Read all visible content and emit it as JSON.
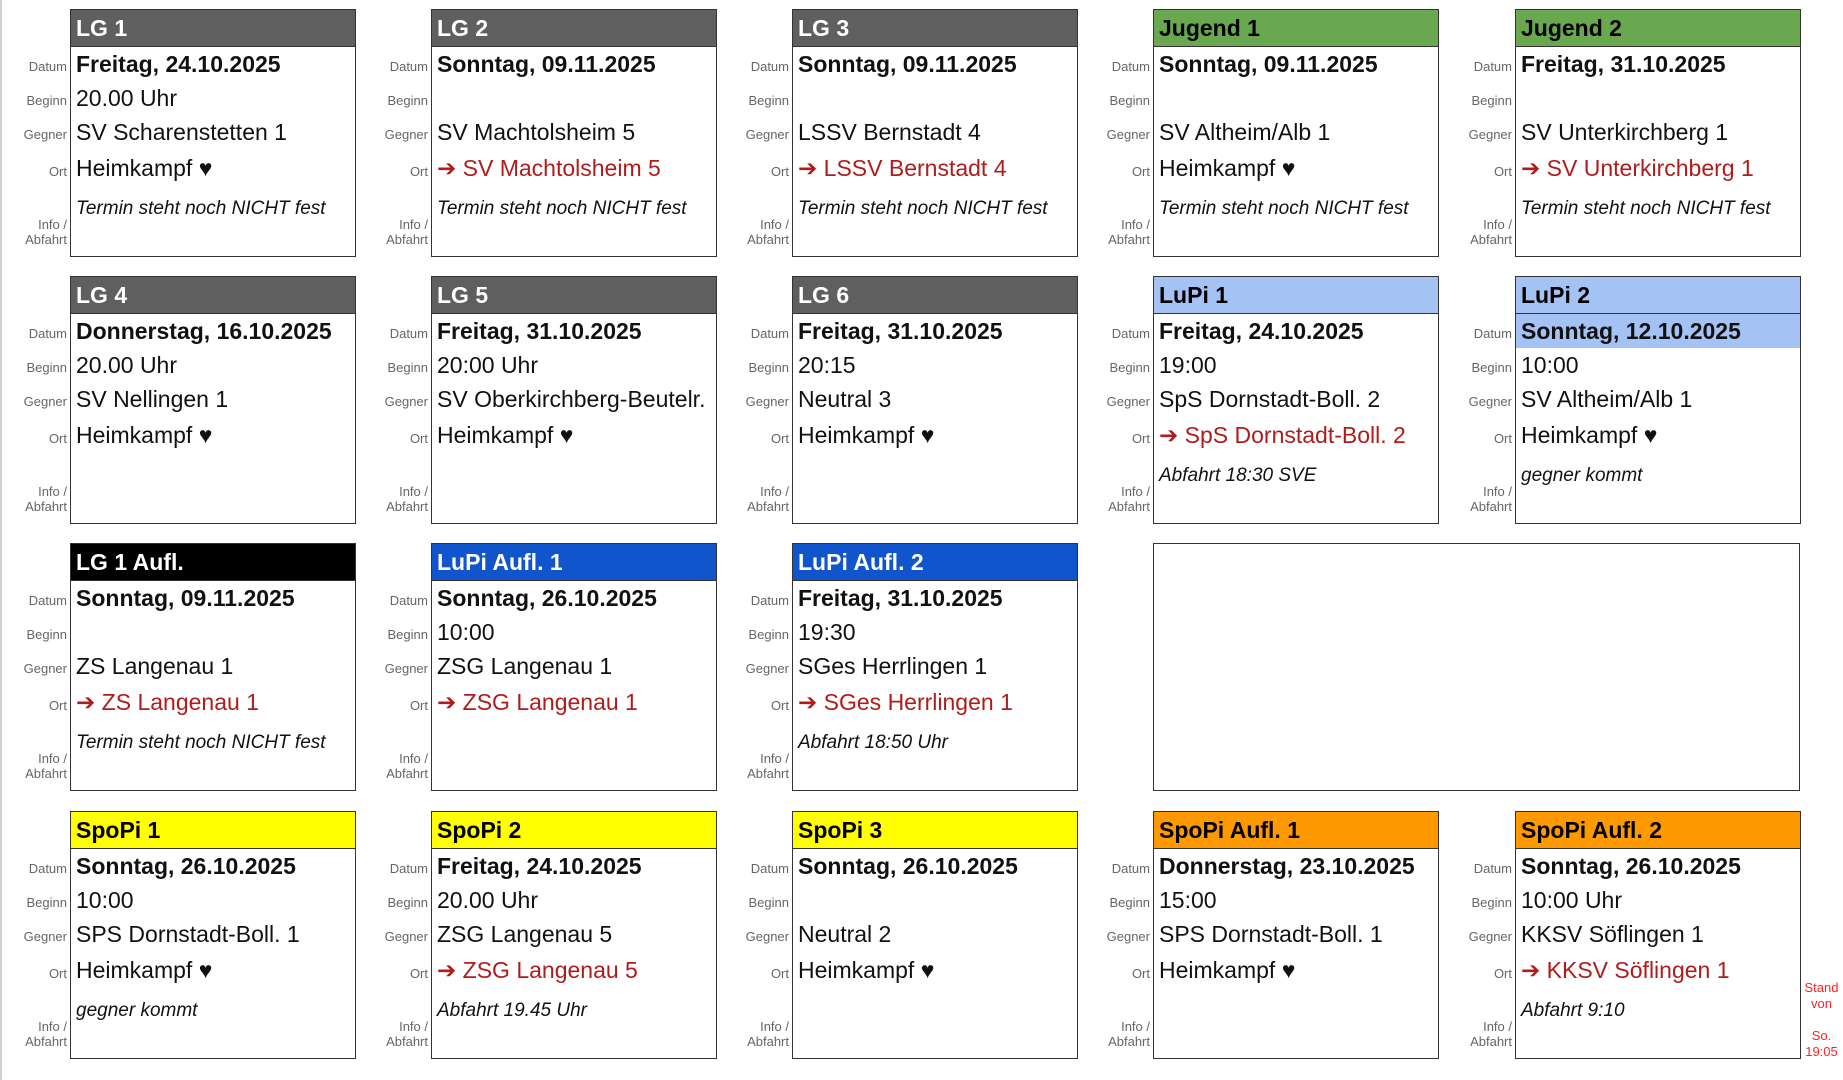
{
  "labels": {
    "datum": "Datum",
    "beginn": "Beginn",
    "gegner": "Gegner",
    "ort": "Ort",
    "info1": "Info /",
    "info2": "Abfahrt"
  },
  "colors": {
    "gray": "#5f5f5f",
    "green": "#6aa84f",
    "light_blue": "#a4c2f4",
    "blue": "#1155cc",
    "black": "#000000",
    "yellow": "#ffff00",
    "orange": "#ff9900",
    "away_red": "#b01c1c"
  },
  "rows": [
    [
      {
        "team": "LG 1",
        "bg": "#5f5f5f",
        "fg": "#ffffff",
        "datum": "Freitag, 24.10.2025",
        "beginn": "20.00 Uhr",
        "gegner": "SV Scharenstetten 1",
        "ort": "Heimkampf ♥",
        "away": false,
        "info": "Termin steht noch NICHT fest"
      },
      {
        "team": "LG 2",
        "bg": "#5f5f5f",
        "fg": "#ffffff",
        "datum": "Sonntag, 09.11.2025",
        "beginn": "",
        "gegner": "SV Machtolsheim 5",
        "ort": "➔ SV Machtolsheim 5",
        "away": true,
        "info": "Termin steht noch NICHT fest"
      },
      {
        "team": "LG 3",
        "bg": "#5f5f5f",
        "fg": "#ffffff",
        "datum": "Sonntag, 09.11.2025",
        "beginn": "",
        "gegner": "LSSV Bernstadt 4",
        "ort": "➔ LSSV Bernstadt 4",
        "away": true,
        "info": "Termin steht noch NICHT fest"
      },
      {
        "team": "Jugend 1",
        "bg": "#6aa84f",
        "fg": "#000000",
        "datum": "Sonntag, 09.11.2025",
        "beginn": "",
        "gegner": "SV Altheim/Alb 1",
        "ort": "Heimkampf ♥",
        "away": false,
        "info": "Termin steht noch NICHT fest"
      },
      {
        "team": "Jugend 2",
        "bg": "#6aa84f",
        "fg": "#000000",
        "datum": "Freitag, 31.10.2025",
        "beginn": "",
        "gegner": "SV Unterkirchberg 1",
        "ort": "➔ SV Unterkirchberg 1",
        "away": true,
        "info": "Termin steht noch NICHT fest"
      }
    ],
    [
      {
        "team": "LG 4",
        "bg": "#5f5f5f",
        "fg": "#ffffff",
        "datum": "Donnerstag, 16.10.2025",
        "beginn": "20.00 Uhr",
        "gegner": "SV Nellingen 1",
        "ort": "Heimkampf ♥",
        "away": false,
        "info": ""
      },
      {
        "team": "LG 5",
        "bg": "#5f5f5f",
        "fg": "#ffffff",
        "datum": "Freitag, 31.10.2025",
        "beginn": "20:00 Uhr",
        "gegner": "SV Oberkirchberg-Beutelr.",
        "ort": "Heimkampf ♥",
        "away": false,
        "info": ""
      },
      {
        "team": "LG 6",
        "bg": "#5f5f5f",
        "fg": "#ffffff",
        "datum": "Freitag, 31.10.2025",
        "beginn": "20:15",
        "gegner": "Neutral 3",
        "ort": "Heimkampf ♥",
        "away": false,
        "info": ""
      },
      {
        "team": "LuPi 1",
        "bg": "#a4c2f4",
        "fg": "#000000",
        "datum": "Freitag, 24.10.2025",
        "beginn": "19:00",
        "gegner": "SpS Dornstadt-Boll. 2",
        "ort": "➔ SpS Dornstadt-Boll. 2",
        "away": true,
        "info": "Abfahrt 18:30 SVE"
      },
      {
        "team": "LuPi 2",
        "bg": "#a4c2f4",
        "fg": "#000000",
        "datum_bg": "#a4c2f4",
        "datum": "Sonntag, 12.10.2025",
        "beginn": "10:00",
        "gegner": "SV Altheim/Alb 1",
        "ort": "Heimkampf ♥",
        "away": false,
        "info": "gegner kommt"
      }
    ],
    [
      {
        "team": "LG 1 Aufl.",
        "bg": "#000000",
        "fg": "#ffffff",
        "datum": "Sonntag, 09.11.2025",
        "beginn": "",
        "gegner": "ZS Langenau 1",
        "ort": "➔ ZS Langenau 1",
        "away": true,
        "info": "Termin steht noch NICHT fest"
      },
      {
        "team": "LuPi Aufl. 1",
        "bg": "#1155cc",
        "fg": "#ffffff",
        "datum": "Sonntag, 26.10.2025",
        "beginn": "10:00",
        "gegner": "ZSG Langenau 1",
        "ort": "➔ ZSG Langenau 1",
        "away": true,
        "info": ""
      },
      {
        "team": "LuPi Aufl. 2",
        "bg": "#1155cc",
        "fg": "#ffffff",
        "datum": "Freitag, 31.10.2025",
        "beginn": "19:30",
        "gegner": "SGes Herrlingen 1",
        "ort": "➔ SGes Herrlingen 1",
        "away": true,
        "info": "Abfahrt 18:50 Uhr"
      }
    ],
    [
      {
        "team": "SpoPi 1",
        "bg": "#ffff00",
        "fg": "#000000",
        "datum": "Sonntag, 26.10.2025",
        "beginn": "10:00",
        "gegner": "SPS Dornstadt-Boll. 1",
        "ort": "Heimkampf ♥",
        "away": false,
        "info": "gegner kommt"
      },
      {
        "team": "SpoPi 2",
        "bg": "#ffff00",
        "fg": "#000000",
        "datum": "Freitag, 24.10.2025",
        "beginn": "20.00 Uhr",
        "gegner": "ZSG Langenau 5",
        "ort": "➔ ZSG Langenau 5",
        "away": true,
        "info": "Abfahrt 19.45 Uhr"
      },
      {
        "team": "SpoPi 3",
        "bg": "#ffff00",
        "fg": "#000000",
        "datum": "Sonntag, 26.10.2025",
        "beginn": "",
        "gegner": "Neutral 2",
        "ort": "Heimkampf ♥",
        "away": false,
        "info": ""
      },
      {
        "team": "SpoPi Aufl. 1",
        "bg": "#ff9900",
        "fg": "#000000",
        "datum": "Donnerstag, 23.10.2025",
        "beginn": "15:00",
        "gegner": "SPS Dornstadt-Boll. 1",
        "ort": "Heimkampf ♥",
        "away": false,
        "info": ""
      },
      {
        "team": "SpoPi Aufl. 2",
        "bg": "#ff9900",
        "fg": "#000000",
        "datum": "Sonntag, 26.10.2025",
        "beginn": "10:00 Uhr",
        "gegner": "KKSV Söflingen 1",
        "ort": "➔ KKSV Söflingen 1",
        "away": true,
        "info": "Abfahrt 9:10"
      }
    ]
  ],
  "stand": {
    "line1": "Stand",
    "line2": "von",
    "line3": "So.",
    "line4": "19:05"
  }
}
